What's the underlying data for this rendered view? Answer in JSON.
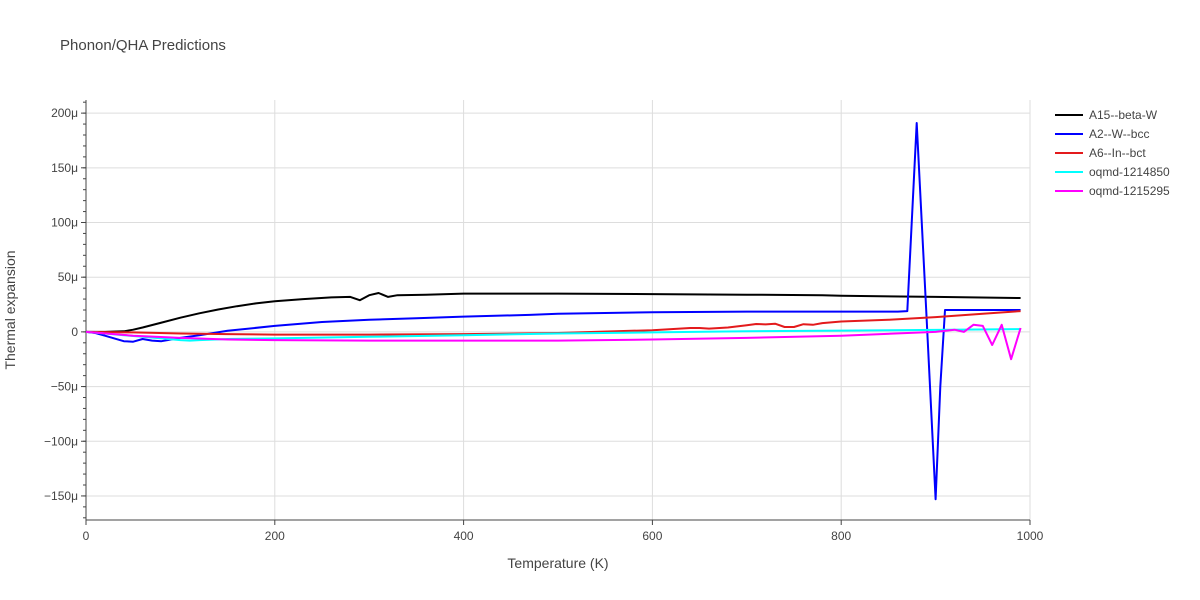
{
  "chart_data": {
    "type": "line",
    "title": "Phonon/QHA Predictions",
    "xlabel": "Temperature (K)",
    "ylabel": "Thermal expansion",
    "xlim": [
      0,
      1000
    ],
    "ylim": [
      -0.000172,
      0.000212
    ],
    "x_ticks": [
      0,
      200,
      400,
      600,
      800,
      1000
    ],
    "x_tick_labels": [
      "0",
      "200",
      "400",
      "600",
      "800",
      "1000"
    ],
    "y_ticks": [
      -0.00015,
      -0.0001,
      -5e-05,
      0,
      5e-05,
      0.0001,
      0.00015,
      0.0002
    ],
    "y_tick_labels": [
      "−150μ",
      "−100μ",
      "−50μ",
      "0",
      "50μ",
      "100μ",
      "150μ",
      "200μ"
    ],
    "grid": true,
    "legend_position": "top-right",
    "series": [
      {
        "name": "A15--beta-W",
        "color": "#000000",
        "x": [
          0,
          20,
          40,
          50,
          60,
          80,
          100,
          120,
          140,
          160,
          180,
          200,
          230,
          260,
          280,
          290,
          300,
          310,
          320,
          330,
          360,
          400,
          450,
          500,
          600,
          700,
          780,
          800,
          900,
          990
        ],
        "y": [
          0,
          0,
          5e-07,
          2e-06,
          4e-06,
          8.5e-06,
          1.3e-05,
          1.7e-05,
          2.05e-05,
          2.35e-05,
          2.6e-05,
          2.8e-05,
          3e-05,
          3.15e-05,
          3.2e-05,
          2.9e-05,
          3.35e-05,
          3.55e-05,
          3.2e-05,
          3.35e-05,
          3.4e-05,
          3.5e-05,
          3.5e-05,
          3.5e-05,
          3.45e-05,
          3.4e-05,
          3.35e-05,
          3.3e-05,
          3.2e-05,
          3.1e-05
        ]
      },
      {
        "name": "A2--W--bcc",
        "color": "#0000ff",
        "x": [
          0,
          10,
          20,
          30,
          40,
          50,
          60,
          70,
          80,
          90,
          100,
          120,
          150,
          200,
          250,
          300,
          350,
          400,
          470,
          500,
          600,
          700,
          800,
          860,
          870,
          880,
          890,
          900,
          905,
          910,
          920,
          990
        ],
        "y": [
          0,
          -1e-06,
          -3.5e-06,
          -6e-06,
          -8.5e-06,
          -9e-06,
          -6.5e-06,
          -8e-06,
          -8.5e-06,
          -7e-06,
          -5.5e-06,
          -3e-06,
          1e-06,
          5.5e-06,
          9e-06,
          1.1e-05,
          1.25e-05,
          1.4e-05,
          1.55e-05,
          1.65e-05,
          1.8e-05,
          1.85e-05,
          1.85e-05,
          1.85e-05,
          1.9e-05,
          0.000191,
          2e-05,
          -0.000153,
          -5e-05,
          2e-05,
          2e-05,
          2e-05
        ]
      },
      {
        "name": "A6--In--bct",
        "color": "#e31a1c",
        "x": [
          0,
          50,
          100,
          150,
          200,
          300,
          400,
          500,
          600,
          640,
          650,
          660,
          680,
          700,
          710,
          720,
          730,
          740,
          750,
          760,
          770,
          780,
          800,
          850,
          900,
          950,
          990
        ],
        "y": [
          0,
          -5e-07,
          -1.5e-06,
          -2e-06,
          -2.5e-06,
          -2.5e-06,
          -2e-06,
          -1e-06,
          1.5e-06,
          3.5e-06,
          3.5e-06,
          3e-06,
          4e-06,
          6e-06,
          7.2e-06,
          6.8e-06,
          7.5e-06,
          4.5e-06,
          4.5e-06,
          7e-06,
          6.5e-06,
          8e-06,
          9.5e-06,
          1.1e-05,
          1.35e-05,
          1.65e-05,
          1.9e-05
        ]
      },
      {
        "name": "oqmd-1214850",
        "color": "#00ffff",
        "x": [
          0,
          20,
          40,
          60,
          80,
          100,
          110,
          120,
          150,
          200,
          300,
          400,
          500,
          600,
          700,
          800,
          900,
          990
        ],
        "y": [
          0,
          -1.5e-06,
          -3e-06,
          -4.5e-06,
          -6e-06,
          -7.5e-06,
          -8e-06,
          -7.5e-06,
          -6.5e-06,
          -6e-06,
          -4.5e-06,
          -3e-06,
          -1.5e-06,
          -5e-07,
          5e-07,
          1.2e-06,
          1.8e-06,
          2.5e-06
        ]
      },
      {
        "name": "oqmd-1215295",
        "color": "#ff00ff",
        "x": [
          0,
          50,
          100,
          150,
          200,
          300,
          400,
          500,
          600,
          700,
          800,
          900,
          920,
          930,
          940,
          950,
          960,
          970,
          980,
          990
        ],
        "y": [
          0,
          -3.5e-06,
          -5.5e-06,
          -7e-06,
          -7.5e-06,
          -8e-06,
          -8e-06,
          -8e-06,
          -7e-06,
          -5.5e-06,
          -3.5e-06,
          0,
          2e-06,
          0,
          6.5e-06,
          5.5e-06,
          -1.2e-05,
          6.5e-06,
          -2.5e-05,
          3.5e-06
        ]
      }
    ]
  }
}
